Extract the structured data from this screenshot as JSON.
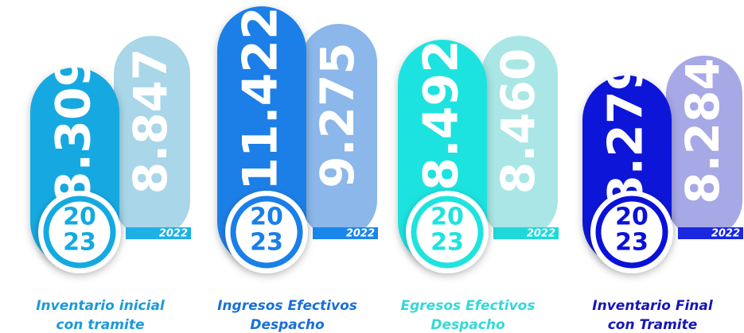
{
  "items": [
    {
      "label": [
        "Inventario inicial",
        "con tramite"
      ],
      "current": "8.309",
      "previous": "8.847"
    },
    {
      "label": [
        "Ingresos Efectivos",
        "Despacho"
      ],
      "current": "11.422",
      "previous": "9.275"
    },
    {
      "label": [
        "Egresos Efectivos",
        "Despacho"
      ],
      "current": "8.492",
      "previous": "8.460"
    },
    {
      "label": [
        "Inventario Final",
        "con Tramite"
      ],
      "current": "8.279",
      "previous": "8.284"
    }
  ],
  "year_current": [
    "20",
    "23"
  ],
  "year_previous": "2022"
}
